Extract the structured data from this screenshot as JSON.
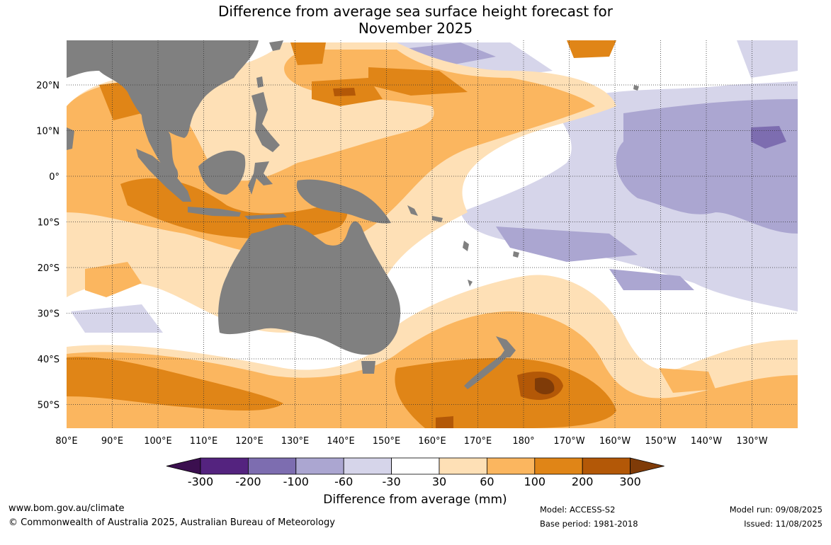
{
  "title_line1": "Difference from average sea surface height forecast for",
  "title_line2": "November 2025",
  "lon_labels": [
    "80°E",
    "90°E",
    "100°E",
    "110°E",
    "120°E",
    "130°E",
    "140°E",
    "150°E",
    "160°E",
    "170°E",
    "180°",
    "170°W",
    "160°W",
    "150°W",
    "140°W",
    "130°W"
  ],
  "lat_labels": [
    "20°N",
    "10°N",
    "0°",
    "10°S",
    "20°S",
    "30°S",
    "40°S",
    "50°S"
  ],
  "colorbar": {
    "title": "Difference from average (mm)",
    "ticks": [
      "-300",
      "-200",
      "-100",
      "-60",
      "-30",
      "30",
      "60",
      "100",
      "200",
      "300"
    ],
    "colors": [
      "#3b0f4f",
      "#54237f",
      "#7d6db0",
      "#aba6d1",
      "#d6d5ea",
      "#ffffff",
      "#fee0b6",
      "#fbb65f",
      "#e08517",
      "#b35807",
      "#7f3b08"
    ]
  },
  "colors": {
    "land": "#808080",
    "grid": "#333333"
  },
  "footer": {
    "website": "www.bom.gov.au/climate",
    "copyright": "© Commonwealth of Australia 2025, Australian Bureau of Meteorology",
    "model": "Model: ACCESS-S2",
    "base_period": "Base period: 1981-2018",
    "model_run": "Model run: 09/08/2025",
    "issued": "Issued: 11/08/2025"
  }
}
